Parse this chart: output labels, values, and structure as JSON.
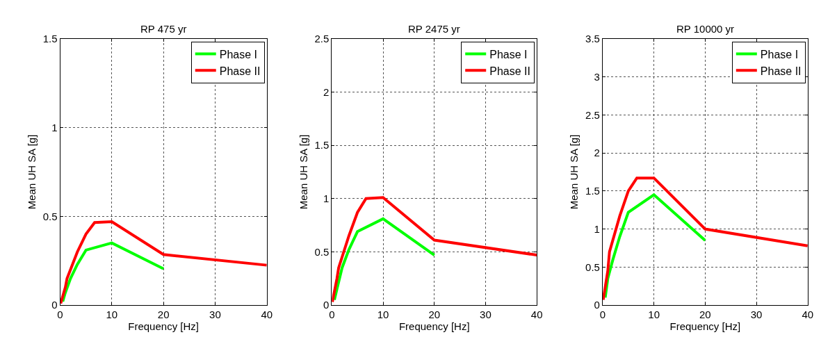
{
  "chart_data": [
    {
      "type": "line",
      "title": "RP 475 yr",
      "xlabel": "Frequency [Hz]",
      "ylabel": "Mean UH SA [g]",
      "xlim": [
        0,
        40
      ],
      "xticks": [
        0,
        10,
        20,
        30,
        40
      ],
      "ylim": [
        0,
        1.5
      ],
      "yticks": [
        0,
        0.5,
        1,
        1.5
      ],
      "grid": true,
      "legend": "top right",
      "line_style": "solid",
      "series": [
        {
          "name": "Phase I",
          "color": "#00ff00",
          "x": [
            0.5,
            1,
            2,
            3.33,
            5,
            10,
            20
          ],
          "values": [
            0.02,
            0.07,
            0.15,
            0.23,
            0.31,
            0.35,
            0.205
          ]
        },
        {
          "name": "Phase II",
          "color": "#ff0000",
          "x": [
            0.1,
            1,
            1.33,
            2,
            3.33,
            5,
            6.67,
            10,
            20,
            40
          ],
          "values": [
            0.01,
            0.1,
            0.15,
            0.2,
            0.3,
            0.4,
            0.465,
            0.47,
            0.285,
            0.225
          ]
        }
      ]
    },
    {
      "type": "line",
      "title": "RP 2475 yr",
      "xlabel": "Frequency [Hz]",
      "ylabel": "Mean UH SA [g]",
      "xlim": [
        0,
        40
      ],
      "xticks": [
        0,
        10,
        20,
        30,
        40
      ],
      "ylim": [
        0,
        2.5
      ],
      "yticks": [
        0,
        0.5,
        1,
        1.5,
        2,
        2.5
      ],
      "grid": true,
      "legend": "top right",
      "line_style": "solid",
      "series": [
        {
          "name": "Phase I",
          "color": "#00ff00",
          "x": [
            0.5,
            1,
            2,
            3.33,
            5,
            10,
            20
          ],
          "values": [
            0.05,
            0.15,
            0.35,
            0.52,
            0.69,
            0.81,
            0.47
          ]
        },
        {
          "name": "Phase II",
          "color": "#ff0000",
          "x": [
            0.1,
            1,
            1.33,
            3.33,
            5,
            6.67,
            10,
            20,
            40
          ],
          "values": [
            0.03,
            0.25,
            0.35,
            0.65,
            0.87,
            1.0,
            1.01,
            0.61,
            0.47
          ]
        }
      ]
    },
    {
      "type": "line",
      "title": "RP 10000 yr",
      "xlabel": "Frequency [Hz]",
      "ylabel": "Mean UH SA [g]",
      "xlim": [
        0,
        40
      ],
      "xticks": [
        0,
        10,
        20,
        30,
        40
      ],
      "ylim": [
        0,
        3.5
      ],
      "yticks": [
        0,
        0.5,
        1,
        1.5,
        2,
        2.5,
        3,
        3.5
      ],
      "grid": true,
      "legend": "top right",
      "line_style": "solid",
      "series": [
        {
          "name": "Phase I",
          "color": "#00ff00",
          "x": [
            0.5,
            1,
            2,
            3.33,
            5,
            10,
            20
          ],
          "values": [
            0.1,
            0.35,
            0.6,
            0.9,
            1.22,
            1.45,
            0.85
          ]
        },
        {
          "name": "Phase II",
          "color": "#ff0000",
          "x": [
            0.1,
            1,
            1.33,
            3.33,
            5,
            6.67,
            10,
            20,
            40
          ],
          "values": [
            0.07,
            0.45,
            0.7,
            1.17,
            1.5,
            1.67,
            1.67,
            1.0,
            0.78
          ]
        }
      ]
    }
  ]
}
